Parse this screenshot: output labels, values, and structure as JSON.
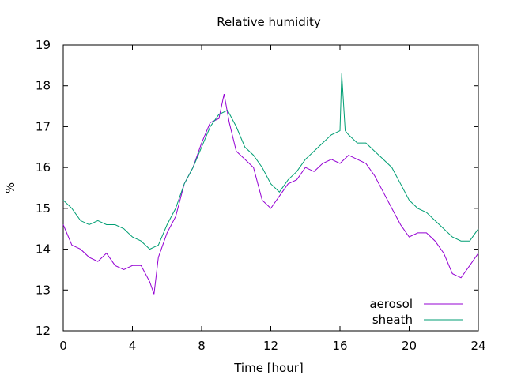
{
  "chart_data": {
    "type": "line",
    "title": "Relative humidity",
    "xlabel": "Time [hour]",
    "ylabel": "%",
    "xlim": [
      0,
      24
    ],
    "ylim": [
      12,
      19
    ],
    "xticks": [
      0,
      4,
      8,
      12,
      16,
      20,
      24
    ],
    "yticks": [
      12,
      13,
      14,
      15,
      16,
      17,
      18,
      19
    ],
    "xtick_labels": [
      "0",
      "4",
      "8",
      "12",
      "16",
      "20",
      "24"
    ],
    "ytick_labels": [
      "12",
      "13",
      "14",
      "15",
      "16",
      "17",
      "18",
      "19"
    ],
    "grid": false,
    "legend_position": "bottom-right",
    "series": [
      {
        "name": "aerosol",
        "color": "#9400d3",
        "x": [
          0,
          0.5,
          1,
          1.5,
          2,
          2.5,
          3,
          3.5,
          4,
          4.5,
          5,
          5.25,
          5.5,
          6,
          6.5,
          7,
          7.5,
          8,
          8.5,
          9,
          9.3,
          9.6,
          10,
          10.5,
          11,
          11.5,
          12,
          12.5,
          13,
          13.5,
          14,
          14.5,
          15,
          15.5,
          16,
          16.5,
          17,
          17.5,
          18,
          18.5,
          19,
          19.5,
          20,
          20.5,
          21,
          21.5,
          22,
          22.5,
          23,
          23.5,
          24
        ],
        "y": [
          14.6,
          14.1,
          14.0,
          13.8,
          13.7,
          13.9,
          13.6,
          13.5,
          13.6,
          13.6,
          13.2,
          12.9,
          13.8,
          14.4,
          14.8,
          15.6,
          16.0,
          16.6,
          17.1,
          17.2,
          17.8,
          17.1,
          16.4,
          16.2,
          16.0,
          15.2,
          15.0,
          15.3,
          15.6,
          15.7,
          16.0,
          15.9,
          16.1,
          16.2,
          16.1,
          16.3,
          16.2,
          16.1,
          15.8,
          15.4,
          15.0,
          14.6,
          14.3,
          14.4,
          14.4,
          14.2,
          13.9,
          13.4,
          13.3,
          13.6,
          13.9
        ]
      },
      {
        "name": "sheath",
        "color": "#009e73",
        "x": [
          0,
          0.5,
          1,
          1.5,
          2,
          2.5,
          3,
          3.5,
          4,
          4.5,
          5,
          5.5,
          6,
          6.5,
          7,
          7.5,
          8,
          8.5,
          9,
          9.5,
          10,
          10.5,
          11,
          11.5,
          12,
          12.5,
          13,
          13.5,
          14,
          14.5,
          15,
          15.5,
          16,
          16.1,
          16.3,
          16.5,
          17,
          17.5,
          18,
          18.5,
          19,
          19.5,
          20,
          20.5,
          21,
          21.5,
          22,
          22.5,
          23,
          23.5,
          24
        ],
        "y": [
          15.2,
          15.0,
          14.7,
          14.6,
          14.7,
          14.6,
          14.6,
          14.5,
          14.3,
          14.2,
          14.0,
          14.1,
          14.6,
          15.0,
          15.6,
          16.0,
          16.5,
          17.0,
          17.3,
          17.4,
          17.0,
          16.5,
          16.3,
          16.0,
          15.6,
          15.4,
          15.7,
          15.9,
          16.2,
          16.4,
          16.6,
          16.8,
          16.9,
          18.3,
          16.9,
          16.8,
          16.6,
          16.6,
          16.4,
          16.2,
          16.0,
          15.6,
          15.2,
          15.0,
          14.9,
          14.7,
          14.5,
          14.3,
          14.2,
          14.2,
          14.5
        ]
      }
    ]
  }
}
